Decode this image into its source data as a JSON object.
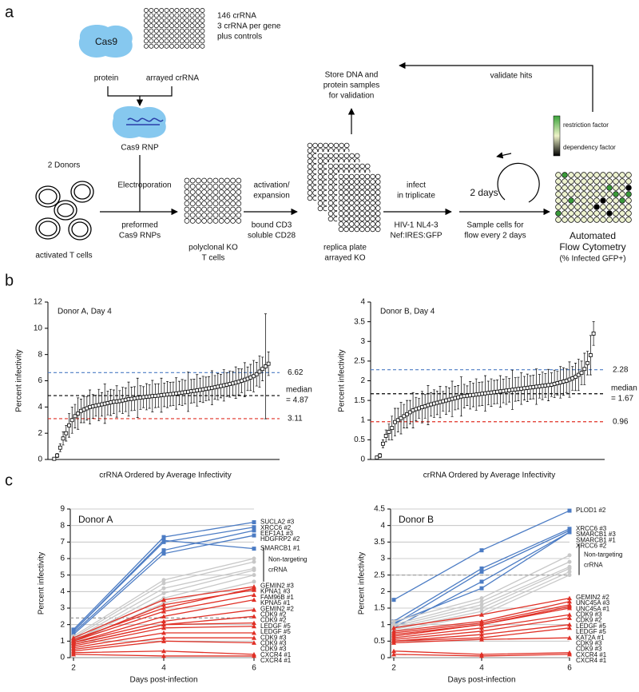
{
  "panels": [
    "a",
    "b",
    "c"
  ],
  "diagram": {
    "cas9": "Cas9",
    "protein": "protein",
    "arrayed_crrna": "arrayed crRNA",
    "crrna_info": [
      "146 crRNA",
      "3 crRNA per gene",
      "plus controls"
    ],
    "cas9_rnp": "Cas9 RNP",
    "donors": "2 Donors",
    "electroporation": "Electroporation",
    "preformed": [
      "preformed",
      "Cas9 RNPs"
    ],
    "activated": "activated T cells",
    "polyclonal": [
      "polyclonal KO",
      "T cells"
    ],
    "activation": [
      "activation/",
      "expansion"
    ],
    "stimulation": [
      "bound CD3",
      "soluble CD28"
    ],
    "replica": [
      "replica plate",
      "arrayed KO"
    ],
    "store": [
      "Store DNA and",
      "protein samples",
      "for validation"
    ],
    "validate": "validate hits",
    "infect": [
      "infect",
      "in triplicate"
    ],
    "virus": [
      "HIV-1 NL4-3",
      "Nef:IRES:GFP"
    ],
    "two_days": "2 days",
    "sample": [
      "Sample cells for",
      "flow every 2 days"
    ],
    "restriction": "restriction factor",
    "dependency": "dependency factor",
    "cytometry": [
      "Automated",
      "Flow Cytometry",
      "(% Infected GFP+)"
    ]
  },
  "chart_data": [
    {
      "type": "errorbar",
      "title": "Donor A, Day 4",
      "xlabel": "crRNA Ordered by Average Infectivity",
      "ylabel": "Percent infectivity",
      "ylim": [
        0,
        12
      ],
      "yticks": [
        0,
        2,
        4,
        6,
        8,
        10,
        12
      ],
      "color": "#000000",
      "values": [
        0.05,
        0.3,
        0.9,
        1.6,
        2.0,
        2.6,
        3.0,
        3.3,
        3.5,
        3.7,
        3.8,
        3.9,
        4.0,
        4.05,
        4.1,
        4.15,
        4.2,
        4.25,
        4.3,
        4.35,
        4.4,
        4.42,
        4.45,
        4.5,
        4.55,
        4.6,
        4.62,
        4.65,
        4.7,
        4.72,
        4.75,
        4.78,
        4.8,
        4.83,
        4.85,
        4.87,
        4.9,
        4.93,
        4.95,
        4.98,
        5.0,
        5.03,
        5.06,
        5.1,
        5.13,
        5.16,
        5.2,
        5.23,
        5.27,
        5.3,
        5.34,
        5.38,
        5.42,
        5.46,
        5.5,
        5.55,
        5.6,
        5.65,
        5.7,
        5.75,
        5.8,
        5.86,
        5.92,
        6.0,
        6.08,
        6.15,
        6.25,
        6.35,
        6.5,
        6.7,
        6.9,
        7.1,
        7.3
      ],
      "errors": [
        0.05,
        0.15,
        0.3,
        0.5,
        0.6,
        0.9,
        1.0,
        0.9,
        1.2,
        0.9,
        1.0,
        0.9,
        1.3,
        0.9,
        0.8,
        1.2,
        0.9,
        1.5,
        0.9,
        1.0,
        0.9,
        1.2,
        0.8,
        1.0,
        0.9,
        1.3,
        0.9,
        0.9,
        1.5,
        0.9,
        0.8,
        1.0,
        0.9,
        1.2,
        0.9,
        0.9,
        1.3,
        0.9,
        1.0,
        0.9,
        0.9,
        1.2,
        0.9,
        1.0,
        0.9,
        1.5,
        0.9,
        0.9,
        1.2,
        0.9,
        1.0,
        0.9,
        0.9,
        1.3,
        0.9,
        1.0,
        0.9,
        1.2,
        0.9,
        1.0,
        0.9,
        1.2,
        1.0,
        0.9,
        1.3,
        0.9,
        1.0,
        1.2,
        0.9,
        1.2,
        0.9,
        4.0,
        0.9
      ],
      "ref_lines": [
        {
          "value": 6.62,
          "label": "6.62",
          "color": "#4c7cc4"
        },
        {
          "value": 4.87,
          "label": [
            "median",
            "= 4.87"
          ],
          "color": "#000000"
        },
        {
          "value": 3.11,
          "label": "3.11",
          "color": "#e03026"
        }
      ]
    },
    {
      "type": "errorbar",
      "title": "Donor B, Day 4",
      "xlabel": "crRNA Ordered by Average Infectivity",
      "ylabel": "Percent infectivity",
      "ylim": [
        0,
        4
      ],
      "yticks": [
        0,
        0.5,
        1,
        1.5,
        2,
        2.5,
        3,
        3.5,
        4
      ],
      "color": "#000000",
      "values": [
        0.05,
        0.1,
        0.4,
        0.6,
        0.7,
        0.8,
        0.95,
        1.0,
        1.05,
        1.1,
        1.15,
        1.2,
        1.25,
        1.28,
        1.3,
        1.33,
        1.35,
        1.38,
        1.4,
        1.42,
        1.44,
        1.46,
        1.48,
        1.5,
        1.52,
        1.54,
        1.56,
        1.58,
        1.6,
        1.61,
        1.62,
        1.63,
        1.64,
        1.65,
        1.66,
        1.67,
        1.68,
        1.69,
        1.7,
        1.71,
        1.72,
        1.73,
        1.74,
        1.75,
        1.76,
        1.77,
        1.78,
        1.79,
        1.8,
        1.81,
        1.82,
        1.83,
        1.84,
        1.85,
        1.86,
        1.87,
        1.88,
        1.89,
        1.9,
        1.92,
        1.94,
        1.96,
        1.98,
        2.0,
        2.03,
        2.06,
        2.1,
        2.15,
        2.2,
        2.3,
        2.45,
        2.65,
        3.2
      ],
      "errors": [
        0.02,
        0.05,
        0.1,
        0.15,
        0.2,
        0.3,
        0.35,
        0.3,
        0.4,
        0.3,
        0.35,
        0.3,
        0.45,
        0.3,
        0.25,
        0.4,
        0.3,
        0.5,
        0.3,
        0.35,
        0.3,
        0.4,
        0.25,
        0.35,
        0.3,
        0.45,
        0.3,
        0.3,
        0.5,
        0.3,
        0.25,
        0.35,
        0.3,
        0.4,
        0.3,
        0.3,
        0.45,
        0.3,
        0.35,
        0.3,
        0.3,
        0.4,
        0.3,
        0.35,
        0.3,
        0.5,
        0.3,
        0.3,
        0.4,
        0.3,
        0.35,
        0.3,
        0.3,
        0.45,
        0.3,
        0.35,
        0.3,
        0.4,
        0.3,
        0.35,
        0.3,
        0.4,
        0.35,
        0.3,
        0.45,
        0.3,
        0.35,
        0.4,
        0.3,
        0.4,
        0.3,
        0.5,
        0.3
      ],
      "ref_lines": [
        {
          "value": 2.28,
          "label": "2.28",
          "color": "#4c7cc4"
        },
        {
          "value": 1.67,
          "label": [
            "median",
            "= 1.67"
          ],
          "color": "#000000"
        },
        {
          "value": 0.96,
          "label": "0.96",
          "color": "#e03026"
        }
      ]
    },
    {
      "type": "line",
      "title": "Donor A",
      "xlabel": "Days post-infection",
      "ylabel": "Percent infectivity",
      "x": [
        2,
        4,
        6
      ],
      "xlim": [
        2,
        6
      ],
      "xticks": [
        2,
        4,
        6
      ],
      "ylim": [
        0,
        9
      ],
      "yticks": [
        0,
        1,
        2,
        3,
        4,
        5,
        6,
        7,
        8,
        9
      ],
      "grid": true,
      "bracket_label": [
        "Non-targeting",
        "crRNA"
      ],
      "ref_lines": [
        {
          "value": 2.4,
          "color": "#999999"
        }
      ],
      "series": [
        {
          "name": "SUCLA2 #3",
          "color": "#4c7cc4",
          "marker": "square",
          "values": [
            1.7,
            7.3,
            8.2
          ]
        },
        {
          "name": "XRCC6 #2",
          "color": "#4c7cc4",
          "marker": "square",
          "values": [
            1.6,
            7.0,
            7.9
          ]
        },
        {
          "name": "EEF1A1 #3",
          "color": "#4c7cc4",
          "marker": "square",
          "values": [
            1.5,
            6.5,
            7.7
          ]
        },
        {
          "name": "HDGFRP2 #2",
          "color": "#4c7cc4",
          "marker": "square",
          "values": [
            1.4,
            6.3,
            7.4
          ]
        },
        {
          "name": "SMARCB1 #1",
          "color": "#4c7cc4",
          "marker": "square",
          "values": [
            1.6,
            7.1,
            6.6
          ]
        },
        {
          "color": "#c8c8c8",
          "marker": "circle",
          "values": [
            1.3,
            4.7,
            6.0
          ]
        },
        {
          "color": "#c8c8c8",
          "marker": "circle",
          "values": [
            1.2,
            4.5,
            5.8
          ]
        },
        {
          "color": "#c8c8c8",
          "marker": "circle",
          "values": [
            1.1,
            4.2,
            5.4
          ]
        },
        {
          "color": "#c8c8c8",
          "marker": "circle",
          "values": [
            1.0,
            3.9,
            5.3
          ]
        },
        {
          "color": "#c8c8c8",
          "marker": "circle",
          "values": [
            1.0,
            3.6,
            5.0
          ]
        },
        {
          "color": "#c8c8c8",
          "marker": "circle",
          "values": [
            0.9,
            3.3,
            4.6
          ]
        },
        {
          "name": "GEMIN2 #3",
          "color": "#e03026",
          "marker": "triangle",
          "values": [
            1.2,
            3.5,
            4.3
          ]
        },
        {
          "name": "KPNA1 #3",
          "color": "#e03026",
          "marker": "triangle",
          "values": [
            1.1,
            3.0,
            4.2
          ]
        },
        {
          "name": "FAM96B #1",
          "color": "#e03026",
          "marker": "triangle",
          "values": [
            1.0,
            3.2,
            4.1
          ]
        },
        {
          "name": "KPNA5 #1",
          "color": "#e03026",
          "marker": "triangle",
          "values": [
            1.0,
            2.8,
            3.8
          ]
        },
        {
          "name": "GEMIN2 #2",
          "color": "#e03026",
          "marker": "triangle",
          "values": [
            0.9,
            2.5,
            3.5
          ]
        },
        {
          "name": "CDK9 #2",
          "color": "#e03026",
          "marker": "triangle",
          "values": [
            0.9,
            2.2,
            2.9
          ]
        },
        {
          "name": "CDK9 #2",
          "color": "#e03026",
          "marker": "triangle",
          "values": [
            0.8,
            2.0,
            2.5
          ]
        },
        {
          "name": "LEDGF #5",
          "color": "#e03026",
          "marker": "triangle",
          "values": [
            0.8,
            2.0,
            2.1
          ]
        },
        {
          "name": "LEDGF #5",
          "color": "#e03026",
          "marker": "triangle",
          "values": [
            0.7,
            1.8,
            1.9
          ]
        },
        {
          "name": "CDK9 #3",
          "color": "#e03026",
          "marker": "triangle",
          "values": [
            0.6,
            1.5,
            1.5
          ]
        },
        {
          "name": "CDK9 #3",
          "color": "#e03026",
          "marker": "triangle",
          "values": [
            0.5,
            1.2,
            1.2
          ]
        },
        {
          "name": "CDK9 #3",
          "color": "#e03026",
          "marker": "triangle",
          "values": [
            0.4,
            1.0,
            0.9
          ]
        },
        {
          "name": "CXCR4 #1",
          "color": "#e03026",
          "marker": "triangle",
          "values": [
            0.3,
            0.4,
            0.2
          ]
        },
        {
          "name": "CXCR4 #1",
          "color": "#e03026",
          "marker": "triangle",
          "values": [
            0.2,
            0.1,
            0.1
          ]
        }
      ]
    },
    {
      "type": "line",
      "title": "Donor B",
      "xlabel": "Days post-infection",
      "ylabel": "Percent infectivity",
      "x": [
        2,
        4,
        6
      ],
      "xlim": [
        2,
        6
      ],
      "xticks": [
        2,
        4,
        6
      ],
      "ylim": [
        0,
        4.5
      ],
      "yticks": [
        0,
        0.5,
        1,
        1.5,
        2,
        2.5,
        3,
        3.5,
        4,
        4.5
      ],
      "grid": true,
      "bracket_label": [
        "Non-targeting",
        "crRNA"
      ],
      "ref_lines": [
        {
          "value": 2.5,
          "color": "#999999"
        }
      ],
      "series": [
        {
          "name": "PLOD1 #2",
          "color": "#4c7cc4",
          "marker": "square",
          "values": [
            1.75,
            3.25,
            4.45
          ]
        },
        {
          "name": "XRCC6 #3",
          "color": "#4c7cc4",
          "marker": "square",
          "values": [
            1.1,
            2.7,
            3.9
          ]
        },
        {
          "name": "SMARCB1 #3",
          "color": "#4c7cc4",
          "marker": "square",
          "values": [
            1.0,
            2.6,
            3.85
          ]
        },
        {
          "name": "SMARCB1 #1",
          "color": "#4c7cc4",
          "marker": "square",
          "values": [
            0.9,
            2.3,
            3.8
          ]
        },
        {
          "name": "XRCC6 #2",
          "color": "#4c7cc4",
          "marker": "square",
          "values": [
            1.05,
            2.1,
            3.8
          ]
        },
        {
          "color": "#c8c8c8",
          "marker": "circle",
          "values": [
            1.1,
            1.8,
            3.1
          ]
        },
        {
          "color": "#c8c8c8",
          "marker": "circle",
          "values": [
            1.0,
            1.7,
            2.9
          ]
        },
        {
          "color": "#c8c8c8",
          "marker": "circle",
          "values": [
            0.95,
            1.6,
            2.75
          ]
        },
        {
          "color": "#c8c8c8",
          "marker": "circle",
          "values": [
            0.9,
            1.5,
            2.7
          ]
        },
        {
          "color": "#c8c8c8",
          "marker": "circle",
          "values": [
            0.85,
            1.4,
            2.6
          ]
        },
        {
          "color": "#c8c8c8",
          "marker": "circle",
          "values": [
            0.8,
            1.3,
            2.5
          ]
        },
        {
          "name": "GEMIN2 #2",
          "color": "#e03026",
          "marker": "triangle",
          "values": [
            0.9,
            1.3,
            1.8
          ]
        },
        {
          "name": "UNC45A #3",
          "color": "#e03026",
          "marker": "triangle",
          "values": [
            0.8,
            1.1,
            1.7
          ]
        },
        {
          "name": "UNC45A #1",
          "color": "#e03026",
          "marker": "triangle",
          "values": [
            0.75,
            1.05,
            1.6
          ]
        },
        {
          "name": "CDK9 #3",
          "color": "#e03026",
          "marker": "triangle",
          "values": [
            0.7,
            1.0,
            1.55
          ]
        },
        {
          "name": "CDK9 #2",
          "color": "#e03026",
          "marker": "triangle",
          "values": [
            0.65,
            1.0,
            1.5
          ]
        },
        {
          "name": "LEDGF #5",
          "color": "#e03026",
          "marker": "triangle",
          "values": [
            0.6,
            0.9,
            1.3
          ]
        },
        {
          "name": "LEDGF #5",
          "color": "#e03026",
          "marker": "triangle",
          "values": [
            0.55,
            0.8,
            1.2
          ]
        },
        {
          "name": "KAT2A #1",
          "color": "#e03026",
          "marker": "triangle",
          "values": [
            0.5,
            0.7,
            1.0
          ]
        },
        {
          "name": "CDK9 #3",
          "color": "#e03026",
          "marker": "triangle",
          "values": [
            0.5,
            0.6,
            0.9
          ]
        },
        {
          "name": "CDK9 #3",
          "color": "#e03026",
          "marker": "triangle",
          "values": [
            0.45,
            0.55,
            0.6
          ]
        },
        {
          "name": "CXCR4 #1",
          "color": "#e03026",
          "marker": "triangle",
          "values": [
            0.2,
            0.1,
            0.15
          ]
        },
        {
          "name": "CXCR4 #1",
          "color": "#e03026",
          "marker": "triangle",
          "values": [
            0.1,
            0.05,
            0.1
          ]
        }
      ]
    }
  ]
}
